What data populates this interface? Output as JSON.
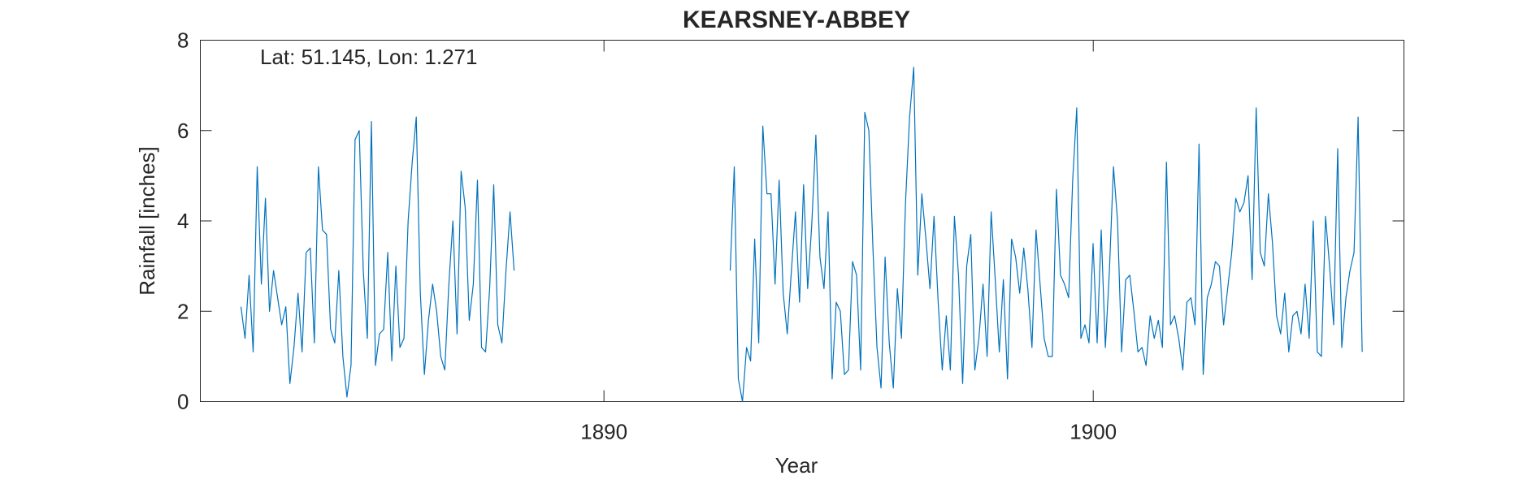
{
  "chart_data": {
    "type": "line",
    "title": "KEARSNEY-ABBEY",
    "xlabel": "Year",
    "ylabel": "Rainfall [inches]",
    "annotation": "Lat: 51.145, Lon: 1.271",
    "xlim": [
      1881.75,
      1906.35
    ],
    "ylim": [
      0,
      8
    ],
    "xticks": [
      1890,
      1900
    ],
    "xtick_labels": [
      "1890",
      "1900"
    ],
    "yticks": [
      0,
      2,
      4,
      6,
      8
    ],
    "ytick_labels": [
      "0",
      "2",
      "4",
      "6",
      "8"
    ],
    "grid": false,
    "line_color": "#0072BD",
    "series": [
      {
        "x_start": 1882.58,
        "x_step": 0.0833333,
        "values": [
          2.1,
          1.4,
          2.8,
          1.1,
          5.2,
          2.6,
          4.5,
          2.0,
          2.9,
          2.3,
          1.7,
          2.1,
          0.4,
          1.2,
          2.4,
          1.1,
          3.3,
          3.4,
          1.3,
          5.2,
          3.8,
          3.7,
          1.6,
          1.3,
          2.9,
          1.0,
          0.1,
          0.8,
          5.8,
          6.0,
          2.9,
          1.4,
          6.2,
          0.8,
          1.5,
          1.6,
          3.3,
          0.9,
          3.0,
          1.2,
          1.4,
          4.0,
          5.3,
          6.3,
          2.4,
          0.6,
          1.8,
          2.6,
          2.0,
          1.0,
          0.7,
          2.6,
          4.0,
          1.5,
          5.1,
          4.3,
          1.8,
          2.6,
          4.9,
          1.2,
          1.1,
          2.5,
          4.8,
          1.7,
          1.3,
          2.9,
          4.2,
          2.9
        ]
      },
      {
        "x_start": 1892.58,
        "x_step": 0.0833333,
        "values": [
          2.9,
          5.2,
          0.5,
          0.0,
          1.2,
          0.9,
          3.6,
          1.3,
          6.1,
          4.6,
          4.6,
          2.6,
          4.9,
          2.4,
          1.5,
          2.9,
          4.2,
          2.2,
          4.8,
          2.5,
          3.9,
          5.9,
          3.2,
          2.5,
          4.2,
          0.5,
          2.2,
          2.0,
          0.6,
          0.7,
          3.1,
          2.8,
          0.7,
          6.4,
          6.0,
          3.4,
          1.2,
          0.3,
          3.2,
          1.3,
          0.3,
          2.5,
          1.4,
          4.4,
          6.3,
          7.4,
          2.8,
          4.6,
          3.6,
          2.5,
          4.1,
          2.2,
          0.7,
          1.9,
          0.7,
          4.1,
          2.8,
          0.4,
          3.0,
          3.7,
          0.7,
          1.4,
          2.6,
          1.0,
          4.2,
          2.7,
          1.1,
          2.7,
          0.5,
          3.6,
          3.2,
          2.4,
          3.4,
          2.5,
          1.2,
          3.8,
          2.6,
          1.4,
          1.0,
          1.0,
          4.7,
          2.8,
          2.6,
          2.3,
          4.9,
          6.5,
          1.4,
          1.7,
          1.3,
          3.5,
          1.3,
          3.8,
          1.2,
          2.9,
          5.2,
          4.0,
          1.1,
          2.7,
          2.8,
          2.0,
          1.1,
          1.2,
          0.8,
          1.9,
          1.4,
          1.8,
          1.2,
          5.3,
          1.7,
          1.9,
          1.4,
          0.7,
          2.2,
          2.3,
          1.7,
          5.7,
          0.6,
          2.3,
          2.6,
          3.1,
          3.0,
          1.7,
          2.5,
          3.3,
          4.5,
          4.2,
          4.4,
          5.0,
          2.7,
          6.5,
          3.3,
          3.0,
          4.6,
          3.5,
          1.9,
          1.5,
          2.4,
          1.1,
          1.9,
          2.0,
          1.5,
          2.6,
          1.4,
          4.0,
          1.1,
          1.0,
          4.1,
          3.0,
          1.7,
          5.6,
          1.2,
          2.3,
          2.9,
          3.3,
          6.3,
          1.1
        ]
      }
    ]
  }
}
